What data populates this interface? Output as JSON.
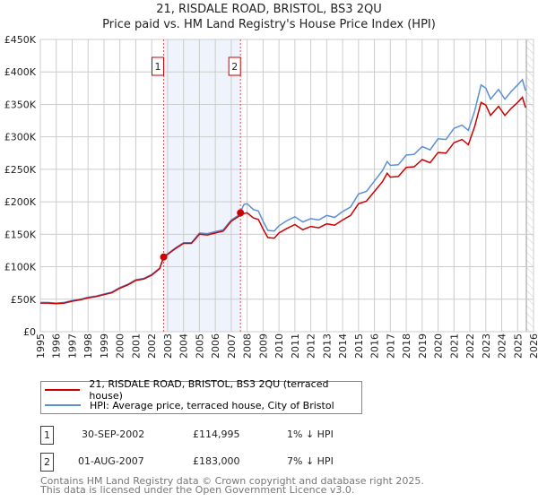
{
  "title_line1": "21, RISDALE ROAD, BRISTOL, BS3 2QU",
  "title_line2": "Price paid vs. HM Land Registry's House Price Index (HPI)",
  "chart_data": {
    "type": "line",
    "title": "21, RISDALE ROAD, BRISTOL, BS3 2QU — Price paid vs. HM Land Registry's House Price Index (HPI)",
    "xlabel": "",
    "ylabel": "",
    "xlim": [
      1995,
      2026
    ],
    "ylim": [
      0,
      450000
    ],
    "x_ticks": [
      "1995",
      "1996",
      "1997",
      "1998",
      "1999",
      "2000",
      "2001",
      "2002",
      "2003",
      "2004",
      "2005",
      "2006",
      "2007",
      "2008",
      "2009",
      "2010",
      "2011",
      "2012",
      "2013",
      "2014",
      "2015",
      "2016",
      "2017",
      "2018",
      "2019",
      "2020",
      "2021",
      "2022",
      "2023",
      "2024",
      "2025",
      "2026"
    ],
    "y_ticks": [
      {
        "value": 0,
        "label": "£0"
      },
      {
        "value": 50000,
        "label": "£50K"
      },
      {
        "value": 100000,
        "label": "£100K"
      },
      {
        "value": 150000,
        "label": "£150K"
      },
      {
        "value": 200000,
        "label": "£200K"
      },
      {
        "value": 250000,
        "label": "£250K"
      },
      {
        "value": 300000,
        "label": "£300K"
      },
      {
        "value": 350000,
        "label": "£350K"
      },
      {
        "value": 400000,
        "label": "£400K"
      },
      {
        "value": 450000,
        "label": "£450K"
      }
    ],
    "grid": true,
    "x": [
      1995.0,
      1995.5,
      1996.0,
      1996.5,
      1997.0,
      1997.5,
      1998.0,
      1998.5,
      1999.0,
      1999.5,
      2000.0,
      2000.5,
      2001.0,
      2001.5,
      2002.0,
      2002.5,
      2002.75,
      2003.0,
      2003.5,
      2004.0,
      2004.5,
      2005.0,
      2005.5,
      2006.0,
      2006.5,
      2007.0,
      2007.5,
      2007.8,
      2008.0,
      2008.4,
      2008.7,
      2009.0,
      2009.3,
      2009.7,
      2010.0,
      2010.5,
      2011.0,
      2011.5,
      2012.0,
      2012.5,
      2013.0,
      2013.5,
      2014.0,
      2014.5,
      2015.0,
      2015.5,
      2016.0,
      2016.5,
      2016.8,
      2017.0,
      2017.5,
      2018.0,
      2018.5,
      2019.0,
      2019.5,
      2020.0,
      2020.5,
      2021.0,
      2021.5,
      2021.9,
      2022.3,
      2022.7,
      2023.0,
      2023.3,
      2023.8,
      2024.2,
      2024.6,
      2025.0,
      2025.3,
      2025.5
    ],
    "series": [
      {
        "name": "21, RISDALE ROAD, BRISTOL, BS3 2QU (terraced house)",
        "color": "#cc0000",
        "values": [
          44000,
          44000,
          43000,
          44000,
          47000,
          49000,
          52000,
          54000,
          57000,
          60000,
          67000,
          72000,
          79000,
          81000,
          87000,
          97000,
          115000,
          119000,
          128000,
          136000,
          136000,
          150000,
          149000,
          152000,
          155000,
          170000,
          178000,
          182000,
          183000,
          175000,
          173000,
          158000,
          145000,
          144000,
          152000,
          159000,
          165000,
          157000,
          162000,
          160000,
          166000,
          164000,
          172000,
          179000,
          197000,
          201000,
          216000,
          231000,
          244000,
          238000,
          239000,
          253000,
          254000,
          265000,
          260000,
          276000,
          275000,
          291000,
          296000,
          288000,
          316000,
          353000,
          349000,
          333000,
          347000,
          333000,
          344000,
          353000,
          361000,
          345000
        ]
      },
      {
        "name": "HPI: Average price, terraced house, City of Bristol",
        "color": "#5b8fd6",
        "values": [
          45000,
          45000,
          44000,
          45000,
          48000,
          50000,
          53000,
          55000,
          58000,
          61000,
          68000,
          73000,
          80000,
          82000,
          88000,
          98000,
          116000,
          120000,
          129000,
          137000,
          137000,
          152000,
          151000,
          154000,
          157000,
          172000,
          180000,
          196000,
          197000,
          188000,
          186000,
          170000,
          156000,
          155000,
          163000,
          171000,
          177000,
          169000,
          174000,
          172000,
          179000,
          176000,
          185000,
          192000,
          212000,
          216000,
          232000,
          248000,
          262000,
          256000,
          257000,
          272000,
          273000,
          285000,
          280000,
          297000,
          296000,
          313000,
          318000,
          310000,
          340000,
          380000,
          375000,
          358000,
          373000,
          358000,
          370000,
          380000,
          388000,
          371000
        ]
      }
    ],
    "sales": [
      {
        "label": "1",
        "x": 2002.75,
        "price": 114995
      },
      {
        "label": "2",
        "x": 2007.58,
        "price": 183000
      }
    ],
    "forecast_start": 2025.55,
    "legend_position": "bottom"
  },
  "legend": {
    "items": [
      {
        "label": "21, RISDALE ROAD, BRISTOL, BS3 2QU (terraced house)",
        "color": "#cc0000"
      },
      {
        "label": "HPI: Average price, terraced house, City of Bristol",
        "color": "#5b8fd6"
      }
    ]
  },
  "transactions": [
    {
      "num": "1",
      "date": "30-SEP-2002",
      "price": "£114,995",
      "delta": "1% ↓ HPI"
    },
    {
      "num": "2",
      "date": "01-AUG-2007",
      "price": "£183,000",
      "delta": "7% ↓ HPI"
    }
  ],
  "footer": {
    "line1": "Contains HM Land Registry data © Crown copyright and database right 2025.",
    "line2": "This data is licensed under the Open Government Licence v3.0."
  }
}
